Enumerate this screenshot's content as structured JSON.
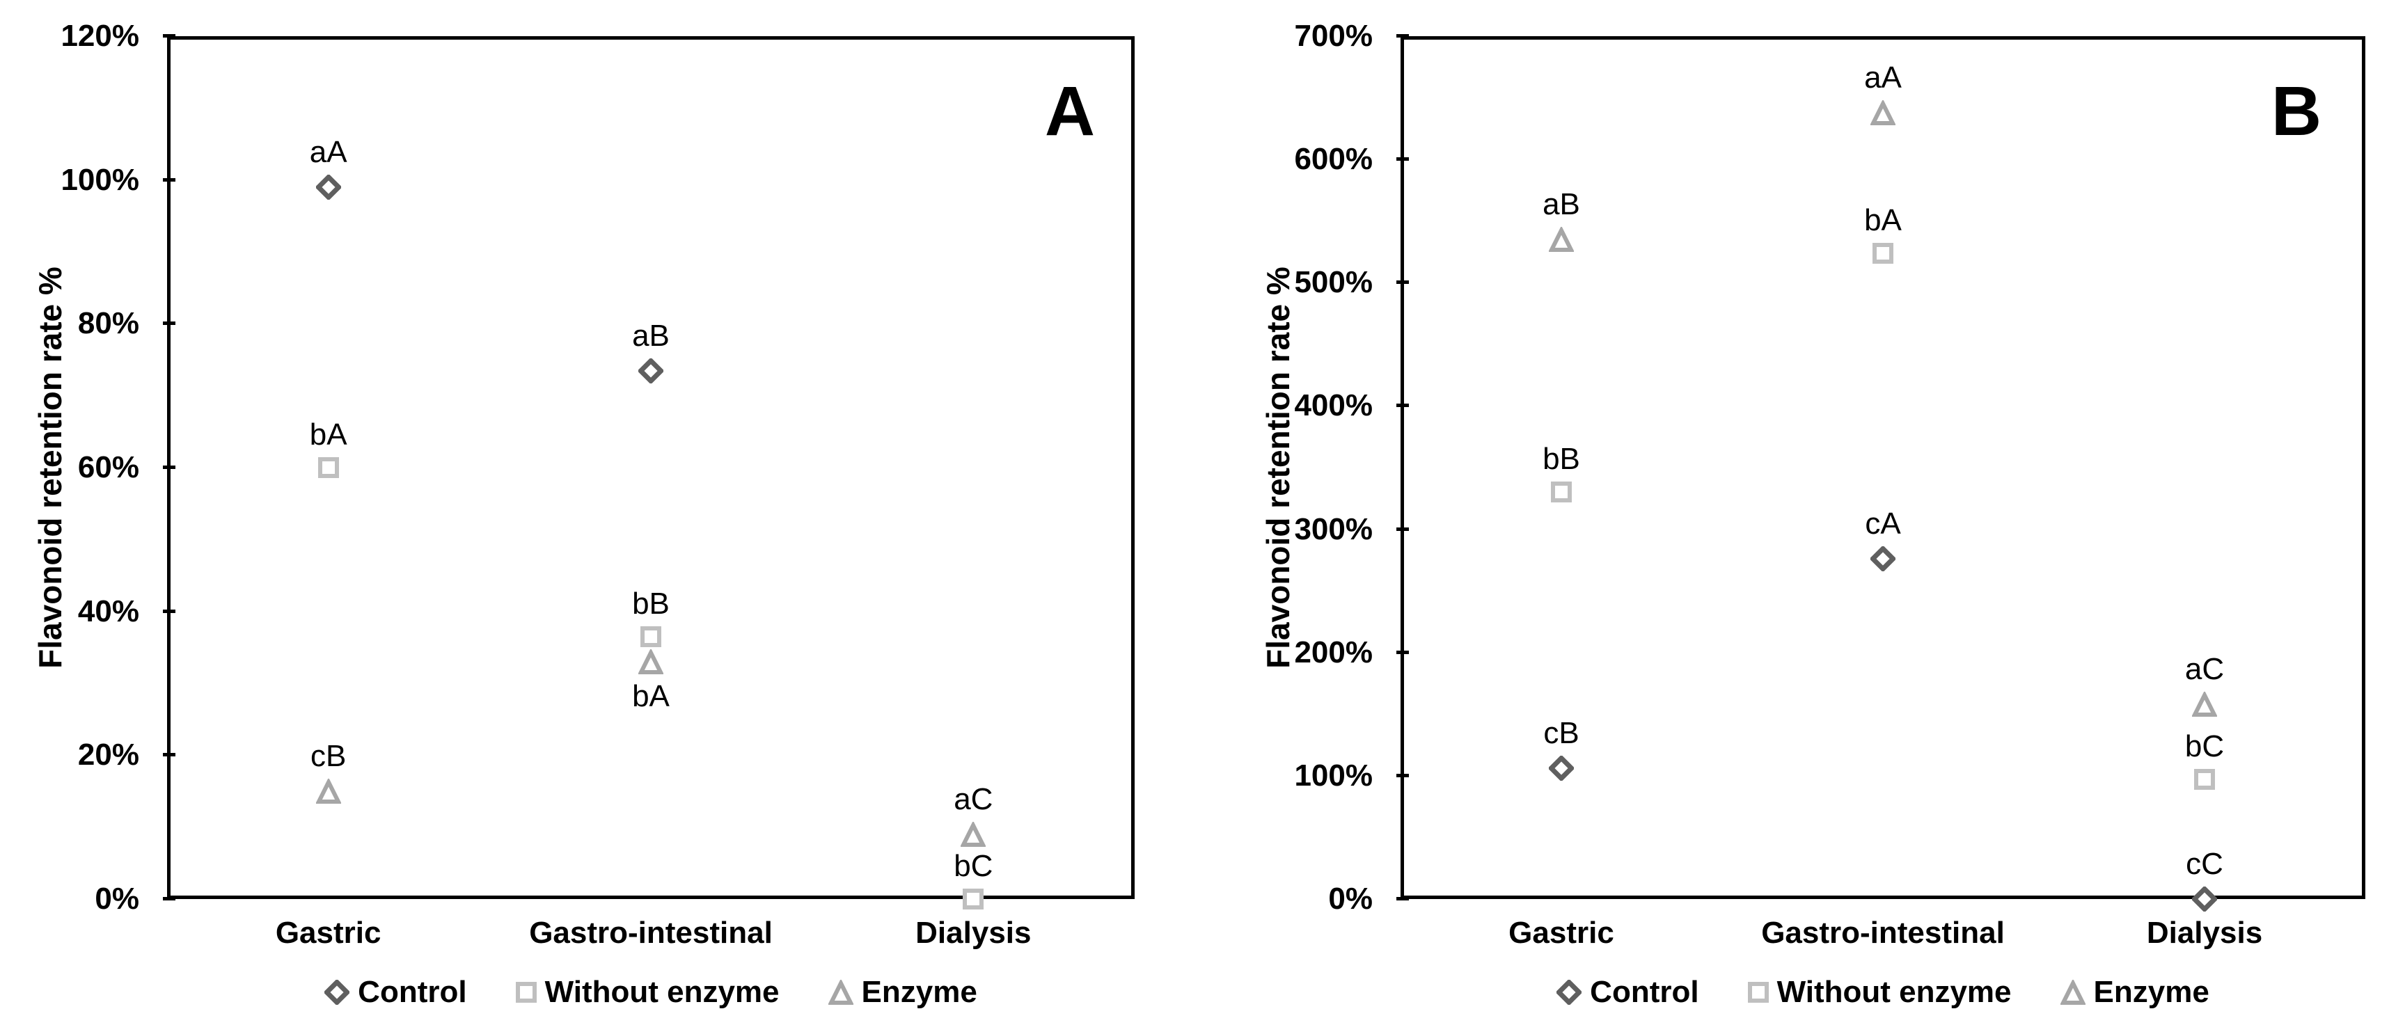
{
  "figure": {
    "background": "#ffffff",
    "text_color": "#000000"
  },
  "chart_data": [
    {
      "type": "scatter",
      "panel_label": "A",
      "ylabel": "Flavonoid retention rate %",
      "ylim": [
        0,
        120
      ],
      "ytick_step": 20,
      "ytick_labels": [
        "0%",
        "20%",
        "40%",
        "60%",
        "80%",
        "100%",
        "120%"
      ],
      "categories": [
        "Gastric",
        "Gastro-intestinal",
        "Dialysis"
      ],
      "grid": false,
      "legend_position": "bottom",
      "series": [
        {
          "name": "Control",
          "marker": "diamond",
          "color": "#5f5f5f",
          "points": [
            {
              "category": "Gastric",
              "value": 99,
              "label": "aA",
              "label_pos": "above"
            },
            {
              "category": "Gastro-intestinal",
              "value": 73.5,
              "label": "aB",
              "label_pos": "above"
            }
          ]
        },
        {
          "name": "Without enzyme",
          "marker": "square",
          "color": "#bfbfbf",
          "points": [
            {
              "category": "Gastric",
              "value": 60,
              "label": "bA",
              "label_pos": "above"
            },
            {
              "category": "Gastro-intestinal",
              "value": 36.5,
              "label": "bB",
              "label_pos": "above"
            },
            {
              "category": "Dialysis",
              "value": 0,
              "label": "bC",
              "label_pos": "above"
            }
          ]
        },
        {
          "name": "Enzyme",
          "marker": "triangle",
          "color": "#a6a6a6",
          "points": [
            {
              "category": "Gastric",
              "value": 15,
              "label": "cB",
              "label_pos": "above"
            },
            {
              "category": "Gastro-intestinal",
              "value": 33,
              "label": "bA",
              "label_pos": "below"
            },
            {
              "category": "Dialysis",
              "value": 9,
              "label": "aC",
              "label_pos": "above"
            }
          ]
        }
      ]
    },
    {
      "type": "scatter",
      "panel_label": "B",
      "ylabel": "Flavonoid retention rate %",
      "ylim": [
        0,
        700
      ],
      "ytick_step": 100,
      "ytick_labels": [
        "0%",
        "100%",
        "200%",
        "300%",
        "400%",
        "500%",
        "600%",
        "700%"
      ],
      "categories": [
        "Gastric",
        "Gastro-intestinal",
        "Dialysis"
      ],
      "grid": false,
      "legend_position": "bottom",
      "series": [
        {
          "name": "Control",
          "marker": "diamond",
          "color": "#5f5f5f",
          "points": [
            {
              "category": "Gastric",
              "value": 106,
              "label": "cB",
              "label_pos": "above"
            },
            {
              "category": "Gastro-intestinal",
              "value": 276,
              "label": "cA",
              "label_pos": "above"
            },
            {
              "category": "Dialysis",
              "value": 0,
              "label": "cC",
              "label_pos": "above"
            }
          ]
        },
        {
          "name": "Without enzyme",
          "marker": "square",
          "color": "#bfbfbf",
          "points": [
            {
              "category": "Gastric",
              "value": 330,
              "label": "bB",
              "label_pos": "above"
            },
            {
              "category": "Gastro-intestinal",
              "value": 524,
              "label": "bA",
              "label_pos": "above"
            },
            {
              "category": "Dialysis",
              "value": 97,
              "label": "bC",
              "label_pos": "above"
            }
          ]
        },
        {
          "name": "Enzyme",
          "marker": "triangle",
          "color": "#a6a6a6",
          "points": [
            {
              "category": "Gastric",
              "value": 535,
              "label": "aB",
              "label_pos": "above"
            },
            {
              "category": "Gastro-intestinal",
              "value": 638,
              "label": "aA",
              "label_pos": "above"
            },
            {
              "category": "Dialysis",
              "value": 158,
              "label": "aC",
              "label_pos": "above"
            }
          ]
        }
      ]
    }
  ]
}
